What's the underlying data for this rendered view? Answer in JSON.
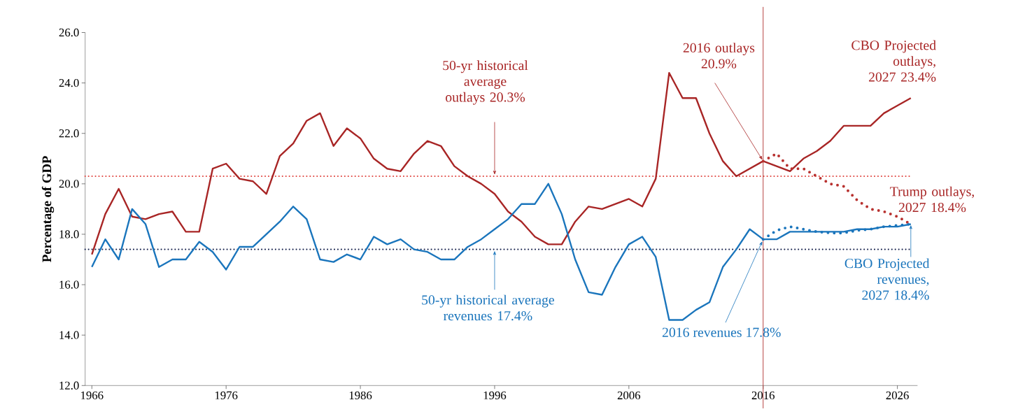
{
  "chart_data": {
    "type": "line",
    "ylabel": "Percentage of GDP",
    "line_style": "solid",
    "xlim": [
      1965.5,
      2027.5
    ],
    "xticks": [
      1966,
      1976,
      1986,
      1996,
      2006,
      2016,
      2026
    ],
    "ylim": [
      12,
      26
    ],
    "yticks": [
      {
        "value": 12,
        "label": "12.0"
      },
      {
        "value": 14,
        "label": "14.0"
      },
      {
        "value": 16,
        "label": "16.0"
      },
      {
        "value": 18,
        "label": "18.0"
      },
      {
        "value": 20,
        "label": "20.0"
      },
      {
        "value": 22,
        "label": "22.0"
      },
      {
        "value": 24,
        "label": "24.0"
      },
      {
        "value": 26,
        "label": "26.0"
      }
    ],
    "series": [
      {
        "color": "#a82525",
        "x": [
          1966,
          1967,
          1968,
          1969,
          1970,
          1971,
          1972,
          1973,
          1974,
          1975,
          1976,
          1977,
          1978,
          1979,
          1980,
          1981,
          1982,
          1983,
          1984,
          1985,
          1986,
          1987,
          1988,
          1989,
          1990,
          1991,
          1992,
          1993,
          1994,
          1995,
          1996,
          1997,
          1998,
          1999,
          2000,
          2001,
          2002,
          2003,
          2004,
          2005,
          2006,
          2007,
          2008,
          2009,
          2010,
          2011,
          2012,
          2013,
          2014,
          2015,
          2016,
          2017,
          2018,
          2019,
          2020,
          2021,
          2022,
          2023,
          2024,
          2025,
          2026,
          2027
        ],
        "values": [
          17.2,
          18.8,
          19.8,
          18.7,
          18.6,
          18.8,
          18.9,
          18.1,
          18.1,
          20.6,
          20.8,
          20.2,
          20.1,
          19.6,
          21.1,
          21.6,
          22.5,
          22.8,
          21.5,
          22.2,
          21.8,
          21.0,
          20.6,
          20.5,
          21.2,
          21.7,
          21.5,
          20.7,
          20.3,
          20.0,
          19.6,
          18.9,
          18.5,
          17.9,
          17.6,
          17.6,
          18.5,
          19.1,
          19.0,
          19.2,
          19.4,
          19.1,
          20.2,
          24.4,
          23.4,
          23.4,
          22.0,
          20.9,
          20.3,
          20.6,
          20.9,
          20.7,
          20.5,
          21.0,
          21.3,
          21.7,
          22.3,
          22.3,
          22.3,
          22.8,
          23.1,
          23.4
        ]
      },
      {
        "color": "#1a75bc",
        "x": [
          1966,
          1967,
          1968,
          1969,
          1970,
          1971,
          1972,
          1973,
          1974,
          1975,
          1976,
          1977,
          1978,
          1979,
          1980,
          1981,
          1982,
          1983,
          1984,
          1985,
          1986,
          1987,
          1988,
          1989,
          1990,
          1991,
          1992,
          1993,
          1994,
          1995,
          1996,
          1997,
          1998,
          1999,
          2000,
          2001,
          2002,
          2003,
          2004,
          2005,
          2006,
          2007,
          2008,
          2009,
          2010,
          2011,
          2012,
          2013,
          2014,
          2015,
          2016,
          2017,
          2018,
          2019,
          2020,
          2021,
          2022,
          2023,
          2024,
          2025,
          2026,
          2027
        ],
        "values": [
          16.7,
          17.8,
          17.0,
          19.0,
          18.4,
          16.7,
          17.0,
          17.0,
          17.7,
          17.3,
          16.6,
          17.5,
          17.5,
          18.0,
          18.5,
          19.1,
          18.6,
          17.0,
          16.9,
          17.2,
          17.0,
          17.9,
          17.6,
          17.8,
          17.4,
          17.3,
          17.0,
          17.0,
          17.5,
          17.8,
          18.2,
          18.6,
          19.2,
          19.2,
          20.0,
          18.8,
          17.0,
          15.7,
          15.6,
          16.7,
          17.6,
          17.9,
          17.1,
          14.6,
          14.6,
          15.0,
          15.3,
          16.7,
          17.4,
          18.2,
          17.8,
          17.8,
          18.1,
          18.1,
          18.1,
          18.1,
          18.1,
          18.2,
          18.2,
          18.3,
          18.3,
          18.4
        ]
      },
      {
        "color": "#b8312f",
        "line_style": "dotted",
        "x": [
          2016,
          2017,
          2018,
          2019,
          2020,
          2021,
          2022,
          2023,
          2024,
          2025,
          2026,
          2027
        ],
        "values": [
          20.9,
          21.2,
          20.6,
          20.6,
          20.3,
          20.0,
          19.9,
          19.35,
          19.0,
          18.9,
          18.7,
          18.4
        ]
      },
      {
        "color": "#1a75bc",
        "line_style": "dotted",
        "x": [
          2016,
          2017,
          2018,
          2019,
          2020,
          2021,
          2022,
          2023,
          2024,
          2025,
          2026,
          2027
        ],
        "values": [
          17.8,
          18.15,
          18.3,
          18.2,
          18.1,
          18.05,
          18.05,
          18.15,
          18.2,
          18.3,
          18.35,
          18.4
        ]
      }
    ],
    "ref_lines": [
      {
        "axis": "y",
        "value": 20.3,
        "color": "#e0453f",
        "line_style": "dotted"
      },
      {
        "axis": "y",
        "value": 17.4,
        "color": "#1b2650",
        "line_style": "dotted"
      },
      {
        "axis": "x",
        "value": 2016,
        "color": "#b5403f",
        "line_style": "solid"
      }
    ],
    "annotations": [
      {
        "text": "50-yr historical average outlays 20.3%",
        "x": 1996,
        "y": 20.3
      },
      {
        "text": "2016 outlays 20.9%",
        "x": 2016,
        "y": 20.9
      },
      {
        "text": "CBO Projected outlays, 2027 23.4%",
        "x": 2027,
        "y": 23.4
      },
      {
        "text": "Trump outlays, 2027 18.4%",
        "x": 2027,
        "y": 18.4
      },
      {
        "text": "CBO Projected revenues, 2027 18.4%",
        "x": 2027,
        "y": 18.4
      },
      {
        "text": "50-yr historical average revenues  17.4%",
        "x": 1996,
        "y": 17.4
      },
      {
        "text": "2016 revenues  17.8%",
        "x": 2016,
        "y": 17.8
      }
    ]
  }
}
